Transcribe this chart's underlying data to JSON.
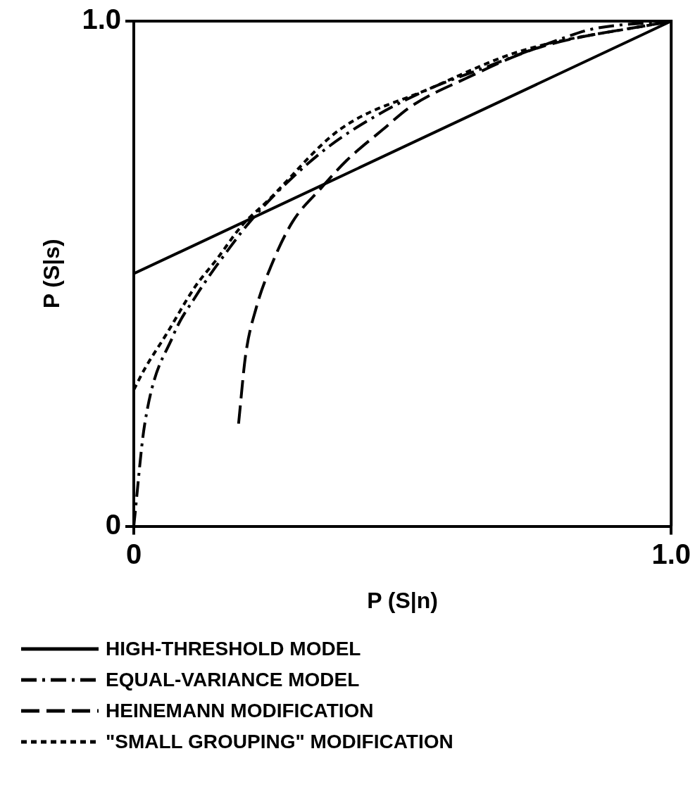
{
  "chart_data": {
    "type": "line",
    "xlabel": "P (S|n)",
    "ylabel": "P (S|s)",
    "xlim": [
      0,
      1
    ],
    "ylim": [
      0,
      1
    ],
    "xticks": [
      0,
      {
        "value": 1,
        "label": "1.0"
      }
    ],
    "yticks": [
      0,
      {
        "value": 1,
        "label": "1.0"
      }
    ],
    "grid": false,
    "legend": "bottom",
    "marker": "none",
    "series": [
      {
        "name": "HIGH-THRESHOLD MODEL",
        "color": "#000000",
        "line_style": "solid",
        "x": [
          0,
          1
        ],
        "values": [
          0.5,
          1
        ]
      },
      {
        "name": "EQUAL-VARIANCE MODEL",
        "color": "#000000",
        "line_style": "dashdot",
        "x": [
          0,
          0.02,
          0.074,
          0.114,
          0.181,
          0.221,
          0.282,
          0.362,
          0.45,
          0.55,
          0.651,
          0.785,
          0.852,
          1
        ],
        "values": [
          0,
          0.2,
          0.379,
          0.453,
          0.555,
          0.609,
          0.677,
          0.751,
          0.812,
          0.866,
          0.907,
          0.961,
          0.984,
          1
        ]
      },
      {
        "name": "HEINEMANN MODIFICATION",
        "color": "#000000",
        "line_style": "dashed",
        "x": [
          0.195,
          0.208,
          0.228,
          0.255,
          0.295,
          0.349,
          0.396,
          0.463,
          0.517,
          0.617,
          0.752,
          1
        ],
        "values": [
          0.203,
          0.338,
          0.433,
          0.514,
          0.602,
          0.67,
          0.724,
          0.785,
          0.832,
          0.886,
          0.947,
          1
        ]
      },
      {
        "name": "\"SMALL GROUPING\" MODIFICATION",
        "color": "#000000",
        "line_style": "dotted",
        "x": [
          0,
          0.02,
          0.06,
          0.114,
          0.154,
          0.201,
          0.248,
          0.383,
          0.55,
          0.718,
          1
        ],
        "values": [
          0.27,
          0.311,
          0.379,
          0.474,
          0.528,
          0.595,
          0.643,
          0.785,
          0.866,
          0.94,
          1
        ]
      }
    ]
  }
}
